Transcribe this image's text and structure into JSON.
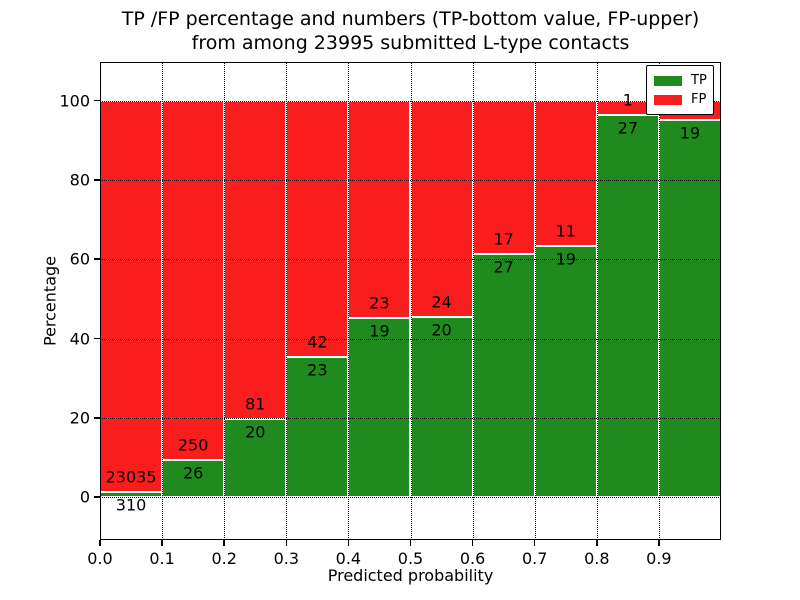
{
  "title": {
    "line1": "TP /FP percentage and numbers (TP-bottom value, FP-upper)",
    "line2": "from among 23995 submitted L-type contacts"
  },
  "axes": {
    "xlabel": "Predicted probability",
    "ylabel": "Percentage",
    "x_tick_labels": [
      "0.0",
      "0.1",
      "0.2",
      "0.3",
      "0.4",
      "0.5",
      "0.6",
      "0.7",
      "0.8",
      "0.9"
    ],
    "y_tick_labels": [
      "0",
      "20",
      "40",
      "60",
      "80",
      "100"
    ],
    "y_tick_values": [
      0,
      20,
      40,
      60,
      80,
      100
    ]
  },
  "legend": {
    "items": [
      {
        "label": "TP",
        "color": "#1f8b1f"
      },
      {
        "label": "FP",
        "color": "#fa1d1d"
      }
    ]
  },
  "colors": {
    "tp": "#1f8b1f",
    "fp": "#fa1d1d",
    "grid": "#000000",
    "frame": "#000000",
    "bar_edge": "#ffffff",
    "background": "#ffffff"
  },
  "chart_data": {
    "type": "bar",
    "stacked": true,
    "normalized": "each bar stacks to 100%",
    "title": "TP /FP percentage and numbers (TP-bottom value, FP-upper) from among 23995 submitted L-type contacts",
    "xlabel": "Predicted probability",
    "ylabel": "Percentage",
    "xlim": [
      0.0,
      1.0
    ],
    "ylim": [
      -11,
      110
    ],
    "grid": "dotted black, on",
    "legend_position": "upper right",
    "categories": [
      "0.0-0.1",
      "0.1-0.2",
      "0.2-0.3",
      "0.3-0.4",
      "0.4-0.5",
      "0.5-0.6",
      "0.6-0.7",
      "0.7-0.8",
      "0.8-0.9",
      "0.9-1.0"
    ],
    "series": [
      {
        "name": "TP",
        "color": "#1f8b1f",
        "counts": [
          310,
          26,
          20,
          23,
          19,
          20,
          27,
          19,
          27,
          19
        ],
        "percent": [
          1.33,
          9.42,
          19.8,
          35.38,
          45.24,
          45.45,
          61.36,
          63.33,
          96.43,
          95.0
        ]
      },
      {
        "name": "FP",
        "color": "#fa1d1d",
        "counts": [
          23035,
          250,
          81,
          42,
          23,
          24,
          17,
          11,
          1,
          null
        ],
        "percent": [
          98.67,
          90.58,
          80.2,
          64.62,
          54.76,
          54.55,
          38.64,
          36.67,
          3.57,
          5.0
        ]
      }
    ],
    "bar_labels": {
      "tp": [
        "310",
        "26",
        "20",
        "23",
        "19",
        "20",
        "27",
        "19",
        "27",
        "19"
      ],
      "fp": [
        "23035",
        "250",
        "81",
        "42",
        "23",
        "24",
        "17",
        "11",
        "1",
        ""
      ]
    },
    "notes": "FP count label of last bin is hidden behind the legend box",
    "total_submitted": 23995
  }
}
